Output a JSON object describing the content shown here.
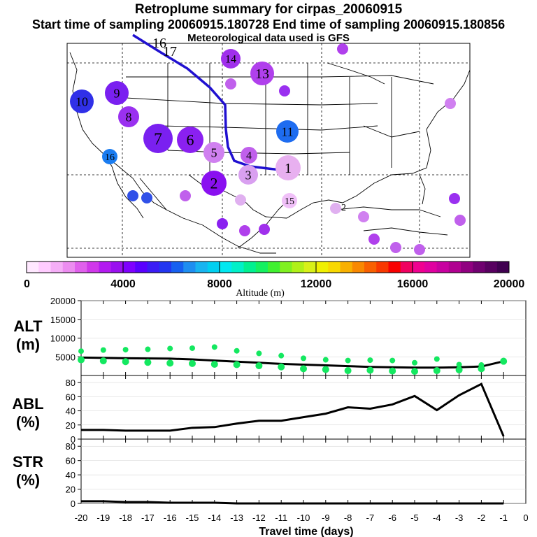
{
  "header": {
    "title": "Retroplume summary for cirpas_20060915",
    "subtitle": "Start time of sampling 20060915.180728     End time of sampling 20060915.180856",
    "met": "Meteorological data used is GFS"
  },
  "colorbar": {
    "label": "Altitude (m)",
    "ticks": [
      "0",
      "4000",
      "8000",
      "12000",
      "16000",
      "20000"
    ],
    "colors": [
      "#ffe8ff",
      "#ffccff",
      "#f5aef7",
      "#ec8cf0",
      "#e060ec",
      "#d037ea",
      "#b31af0",
      "#9a10ef",
      "#7f00ff",
      "#5a00ff",
      "#3b1cf5",
      "#2236f0",
      "#1660f0",
      "#1e8ef0",
      "#18b4f0",
      "#00d0f0",
      "#00e8f0",
      "#00f0c8",
      "#00f090",
      "#14f060",
      "#40f030",
      "#80f020",
      "#b0f018",
      "#d8f018",
      "#f0f000",
      "#f8d800",
      "#f8b000",
      "#f88800",
      "#f86000",
      "#f83800",
      "#f80000",
      "#f00060",
      "#f00090",
      "#e000a0",
      "#c800a0",
      "#b00090",
      "#900080",
      "#700070",
      "#580060",
      "#400050"
    ]
  },
  "map": {
    "labels": [
      {
        "t": "17",
        "x": 233,
        "y": 80,
        "s": 20,
        "c": "#ffffff"
      },
      {
        "t": "16",
        "x": 218,
        "y": 68,
        "s": 20,
        "c": "#ffffff"
      }
    ]
  },
  "chart_data": [
    {
      "type": "scatter",
      "title": "Retroplume cluster positions",
      "series": [
        {
          "name": "clusters",
          "points": [
            {
              "label": "1",
              "color": "#e8b0f0"
            },
            {
              "label": "2",
              "color": "#8a10f0"
            },
            {
              "label": "3",
              "color": "#d9a0f0"
            },
            {
              "label": "4",
              "color": "#c060ec"
            },
            {
              "label": "5",
              "color": "#d080f0"
            },
            {
              "label": "6",
              "color": "#8a20f0"
            },
            {
              "label": "7",
              "color": "#7a20f0"
            },
            {
              "label": "8",
              "color": "#9a30f0"
            },
            {
              "label": "9",
              "color": "#7a20f0"
            },
            {
              "label": "10",
              "color": "#3030e8"
            },
            {
              "label": "11",
              "color": "#1e6cf0"
            },
            {
              "label": "12",
              "color": "#d090f0"
            },
            {
              "label": "13",
              "color": "#b040ec"
            },
            {
              "label": "14",
              "color": "#a030ec"
            },
            {
              "label": "15",
              "color": "#f0c0f8"
            },
            {
              "label": "16",
              "color": "#1a7cf0"
            }
          ]
        }
      ]
    },
    {
      "type": "scatter",
      "title": "ALT (m)",
      "ylabel": "ALT (m)",
      "xlabel": "Travel time (days)",
      "x_ticks": [
        "-20",
        "-19",
        "-18",
        "-17",
        "-16",
        "-15",
        "-14",
        "-13",
        "-12",
        "-11",
        "-10",
        "-9",
        "-8",
        "-7",
        "-6",
        "-5",
        "-4",
        "-3",
        "-2",
        "-1",
        "0"
      ],
      "y_ticks": [
        "5000",
        "10000",
        "15000",
        "20000"
      ],
      "ylim": [
        0,
        20000
      ],
      "xlim": [
        -20,
        0
      ],
      "series": [
        {
          "name": "mean altitude",
          "x": [
            -20,
            -19,
            -18,
            -17,
            -16,
            -15,
            -14,
            -13,
            -12,
            -11,
            -10,
            -9,
            -8,
            -7,
            -6,
            -5,
            -4,
            -3,
            -2,
            -1
          ],
          "values": [
            4800,
            4700,
            4600,
            4550,
            4500,
            4300,
            4000,
            3700,
            3400,
            3100,
            2900,
            2700,
            2500,
            2300,
            2200,
            2100,
            2100,
            2200,
            2400,
            3800
          ]
        },
        {
          "name": "cluster upper",
          "x": [
            -20,
            -19,
            -18,
            -17,
            -16,
            -15,
            -14,
            -13,
            -12,
            -11,
            -10,
            -9,
            -8,
            -7,
            -6,
            -5,
            -4,
            -3,
            -2,
            -1
          ],
          "values": [
            6500,
            6800,
            6900,
            7000,
            7200,
            7300,
            7600,
            6600,
            5900,
            5300,
            4600,
            4200,
            4000,
            4100,
            4000,
            3400,
            4400,
            2900,
            2800,
            4000
          ]
        },
        {
          "name": "cluster lower",
          "x": [
            -20,
            -19,
            -18,
            -17,
            -16,
            -15,
            -14,
            -13,
            -12,
            -11,
            -10,
            -9,
            -8,
            -7,
            -6,
            -5,
            -4,
            -3,
            -2,
            -1
          ],
          "values": [
            4200,
            3900,
            3700,
            3500,
            3300,
            3200,
            3000,
            2900,
            2600,
            2300,
            1800,
            1600,
            1300,
            1400,
            1200,
            1100,
            1300,
            1500,
            1800,
            3800
          ]
        }
      ]
    },
    {
      "type": "line",
      "title": "ABL (%)",
      "ylabel": "ABL (%)",
      "x_ticks": [
        "-20",
        "-19",
        "-18",
        "-17",
        "-16",
        "-15",
        "-14",
        "-13",
        "-12",
        "-11",
        "-10",
        "-9",
        "-8",
        "-7",
        "-6",
        "-5",
        "-4",
        "-3",
        "-2",
        "-1",
        "0"
      ],
      "y_ticks": [
        "0",
        "20",
        "40",
        "60",
        "80"
      ],
      "ylim": [
        0,
        90
      ],
      "x": [
        -20,
        -19,
        -18,
        -17,
        -16,
        -15,
        -14,
        -13,
        -12,
        -11,
        -10,
        -9,
        -8,
        -7,
        -6,
        -5,
        -4,
        -3,
        -2,
        -1
      ],
      "values": [
        13,
        13,
        12,
        12,
        12,
        16,
        17,
        22,
        26,
        26,
        31,
        36,
        45,
        43,
        49,
        61,
        41,
        62,
        78,
        4
      ]
    },
    {
      "type": "line",
      "title": "STR (%)",
      "ylabel": "STR (%)",
      "x_ticks": [
        "-20",
        "-19",
        "-18",
        "-17",
        "-16",
        "-15",
        "-14",
        "-13",
        "-12",
        "-11",
        "-10",
        "-9",
        "-8",
        "-7",
        "-6",
        "-5",
        "-4",
        "-3",
        "-2",
        "-1",
        "0"
      ],
      "y_ticks": [
        "0",
        "20",
        "40",
        "60",
        "80"
      ],
      "ylim": [
        0,
        90
      ],
      "x": [
        -20,
        -19,
        -18,
        -17,
        -16,
        -15,
        -14,
        -13,
        -12,
        -11,
        -10,
        -9,
        -8,
        -7,
        -6,
        -5,
        -4,
        -3,
        -2,
        -1
      ],
      "values": [
        3,
        3,
        2,
        2,
        1,
        1,
        1,
        0,
        0,
        0,
        0,
        0,
        0,
        0,
        0,
        0,
        0,
        0,
        0,
        0
      ]
    }
  ],
  "panels": {
    "alt_label": [
      "ALT",
      "(m)"
    ],
    "abl_label": [
      "ABL",
      "(%)"
    ],
    "str_label": [
      "STR",
      "(%)"
    ],
    "xlabel": "Travel time (days)"
  }
}
